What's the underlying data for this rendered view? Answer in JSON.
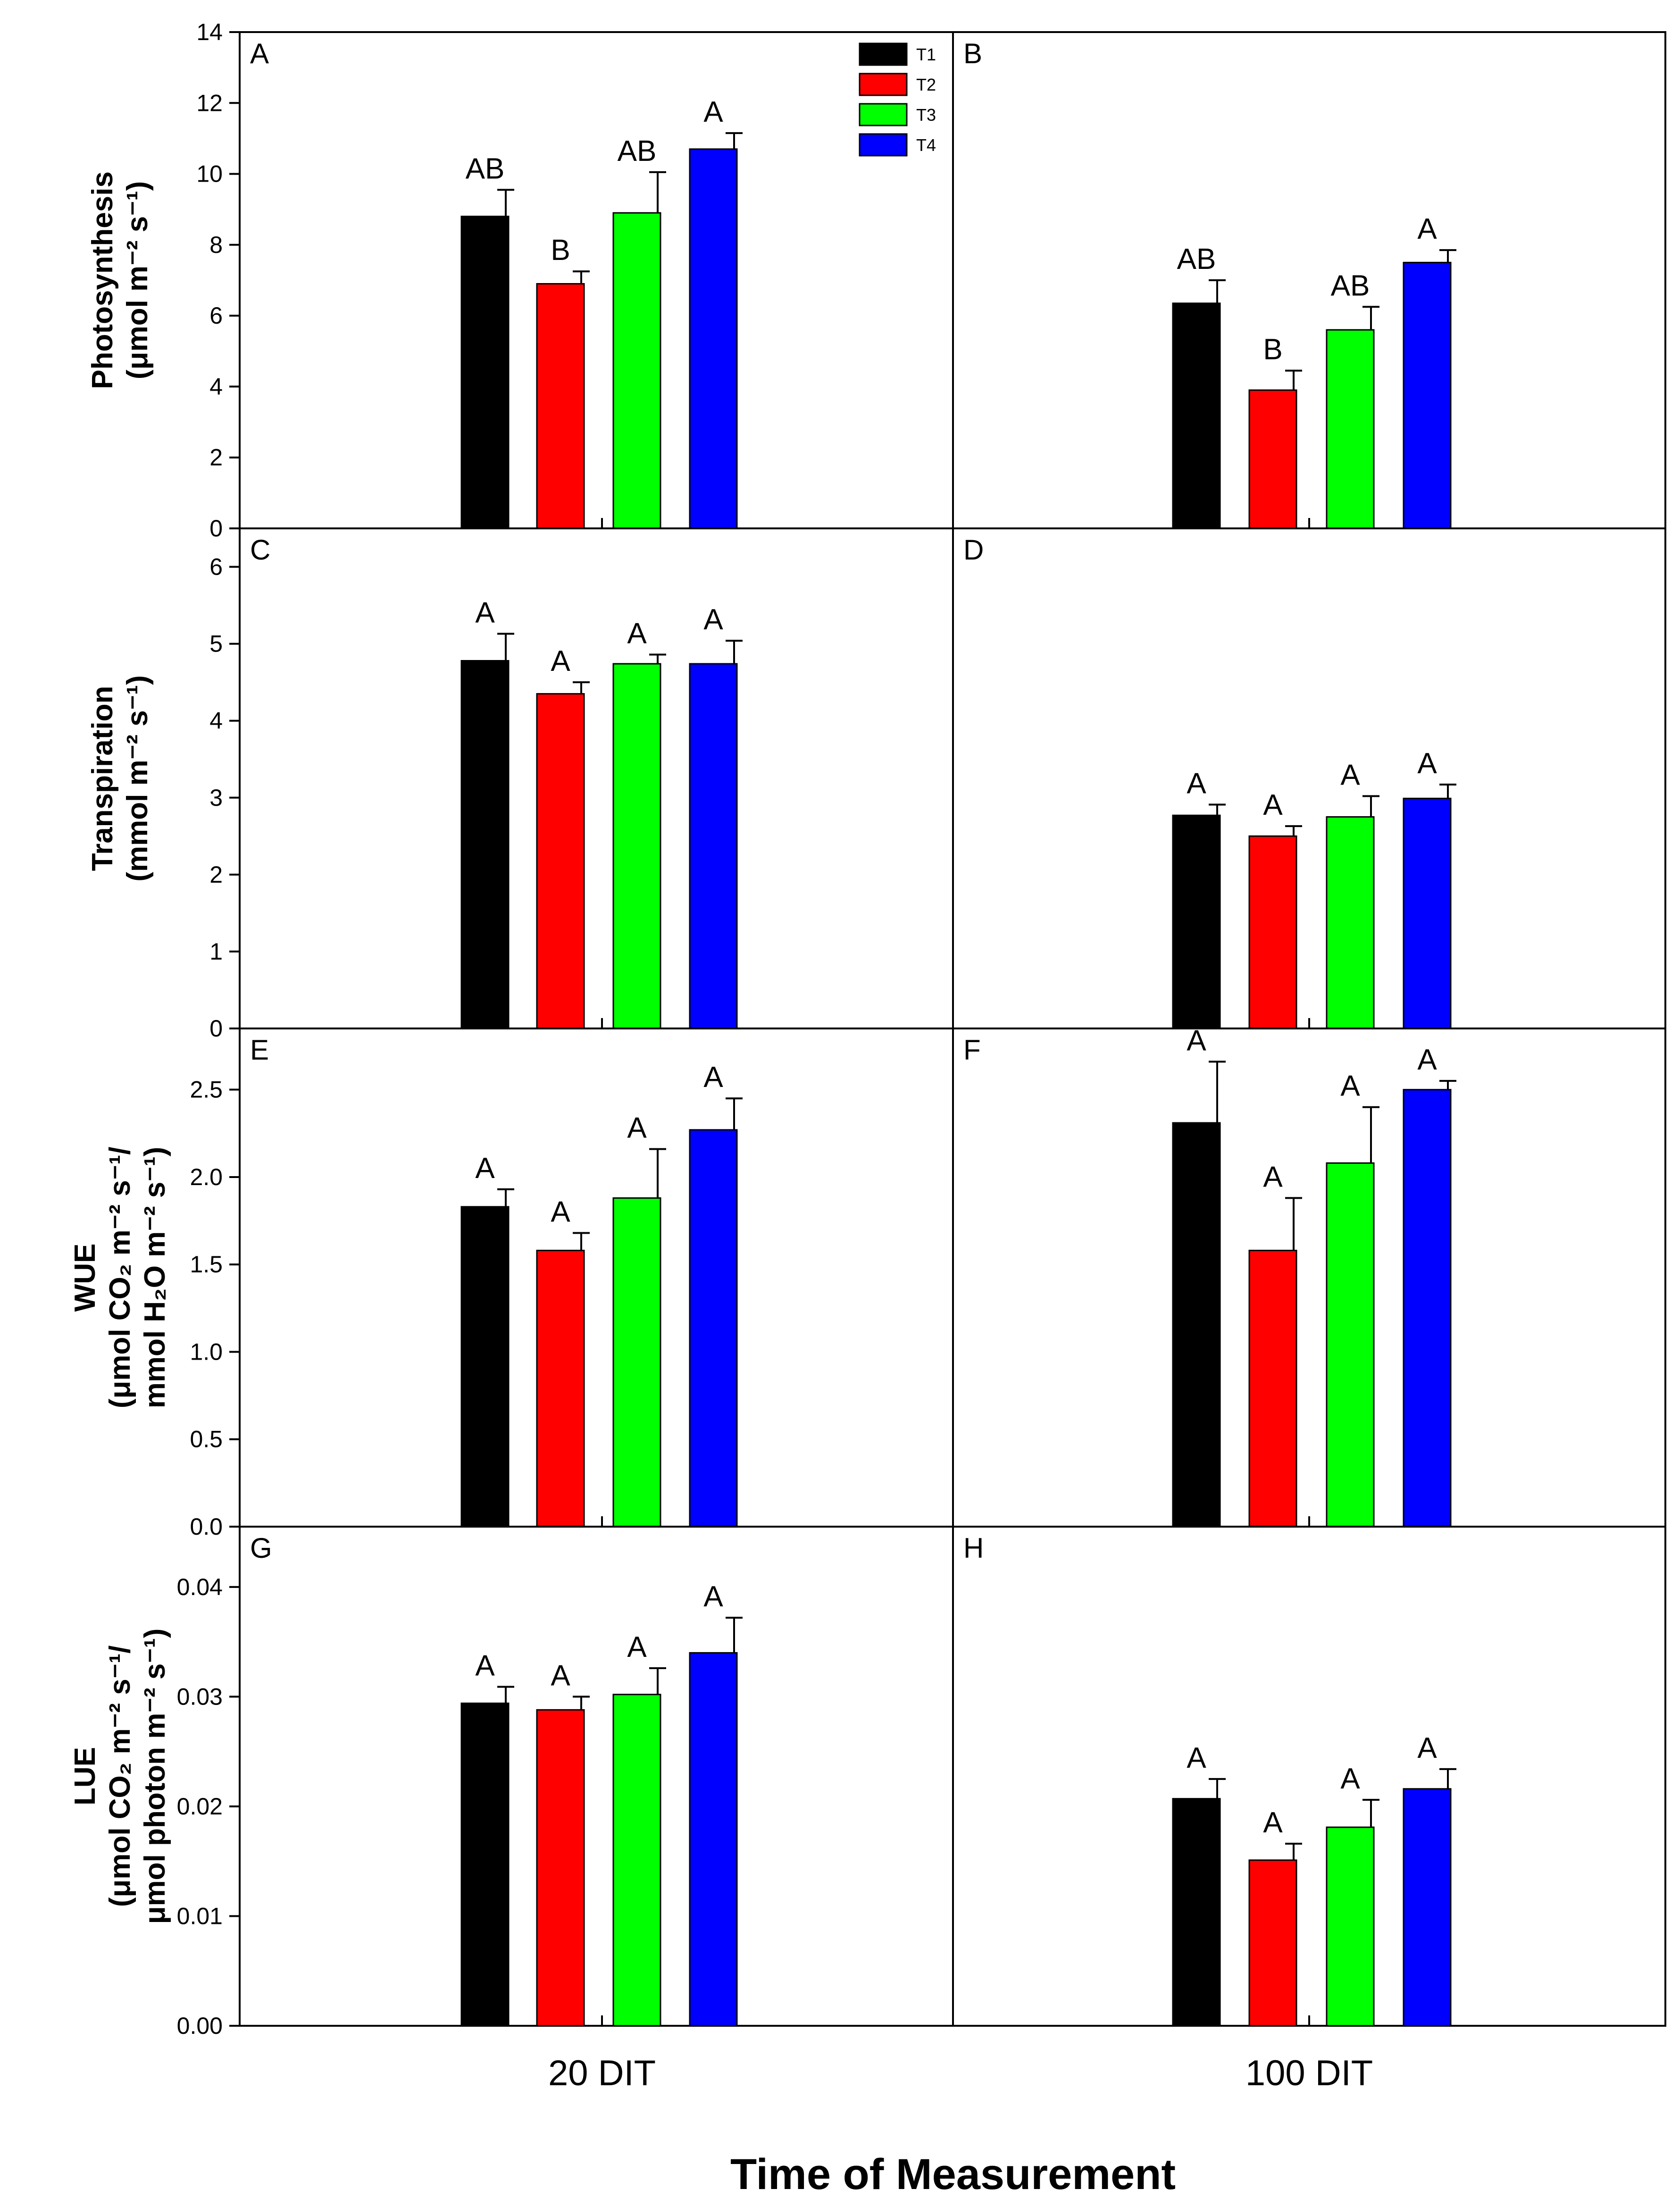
{
  "figure": {
    "xtitle": "Time of Measurement",
    "categories": [
      "20 DIT",
      "100 DIT"
    ]
  },
  "colors": {
    "T1": "#000000",
    "T2": "#ff0000",
    "T3": "#00ff00",
    "T4": "#0000ff"
  },
  "legend": [
    "T1",
    "T2",
    "T3",
    "T4"
  ],
  "chart_data": [
    {
      "type": "bar",
      "row": 0,
      "ylabel_lines": [
        "Photosynthesis",
        "(μmol m⁻² s⁻¹)"
      ],
      "yticks": [
        "0",
        "2",
        "4",
        "6",
        "8",
        "10",
        "12",
        "14"
      ],
      "ylim": [
        0,
        14
      ],
      "panels": [
        {
          "letter": "A",
          "category": "20 DIT",
          "values": [
            8.8,
            6.9,
            8.9,
            10.7
          ],
          "errors": [
            0.75,
            0.35,
            1.15,
            0.45
          ],
          "sig": [
            "AB",
            "B",
            "AB",
            "A"
          ]
        },
        {
          "letter": "B",
          "category": "100 DIT",
          "values": [
            6.35,
            3.9,
            5.6,
            7.5
          ],
          "errors": [
            0.65,
            0.55,
            0.65,
            0.35
          ],
          "sig": [
            "AB",
            "B",
            "AB",
            "A"
          ]
        }
      ]
    },
    {
      "type": "bar",
      "row": 1,
      "ylabel_lines": [
        "Transpiration",
        "(mmol m⁻² s⁻¹)"
      ],
      "yticks": [
        "0",
        "1",
        "2",
        "3",
        "4",
        "5",
        "6"
      ],
      "ylim": [
        0,
        6.5
      ],
      "panels": [
        {
          "letter": "C",
          "category": "20 DIT",
          "values": [
            4.78,
            4.35,
            4.74,
            4.74
          ],
          "errors": [
            0.35,
            0.15,
            0.12,
            0.3
          ],
          "sig": [
            "A",
            "A",
            "A",
            "A"
          ]
        },
        {
          "letter": "D",
          "category": "100 DIT",
          "values": [
            2.77,
            2.5,
            2.75,
            2.99
          ],
          "errors": [
            0.14,
            0.13,
            0.27,
            0.18
          ],
          "sig": [
            "A",
            "A",
            "A",
            "A"
          ]
        }
      ]
    },
    {
      "type": "bar",
      "row": 2,
      "ylabel_lines": [
        "WUE",
        "(μmol CO₂ m⁻² s⁻¹/",
        "mmol H₂O m⁻² s⁻¹)"
      ],
      "yticks": [
        "0.0",
        "0.5",
        "1.0",
        "1.5",
        "2.0",
        "2.5"
      ],
      "ylim": [
        0,
        2.85
      ],
      "panels": [
        {
          "letter": "E",
          "category": "20 DIT",
          "values": [
            1.83,
            1.58,
            1.88,
            2.27
          ],
          "errors": [
            0.1,
            0.1,
            0.28,
            0.18
          ],
          "sig": [
            "A",
            "A",
            "A",
            "A"
          ]
        },
        {
          "letter": "F",
          "category": "100 DIT",
          "values": [
            2.31,
            1.58,
            2.08,
            2.5
          ],
          "errors": [
            0.35,
            0.3,
            0.32,
            0.05
          ],
          "sig": [
            "A",
            "A",
            "A",
            "A"
          ]
        }
      ]
    },
    {
      "type": "bar",
      "row": 3,
      "ylabel_lines": [
        "LUE",
        "(μmol CO₂ m⁻² s⁻¹/",
        "μmol photon m⁻² s⁻¹)"
      ],
      "yticks": [
        "0.00",
        "0.01",
        "0.02",
        "0.03",
        "0.04"
      ],
      "ylim": [
        0,
        0.0455
      ],
      "panels": [
        {
          "letter": "G",
          "category": "20 DIT",
          "values": [
            0.0294,
            0.0288,
            0.0302,
            0.034
          ],
          "errors": [
            0.0015,
            0.0012,
            0.0024,
            0.0032
          ],
          "sig": [
            "A",
            "A",
            "A",
            "A"
          ]
        },
        {
          "letter": "H",
          "category": "100 DIT",
          "values": [
            0.0207,
            0.0151,
            0.0181,
            0.0216
          ],
          "errors": [
            0.0018,
            0.0015,
            0.0025,
            0.0018
          ],
          "sig": [
            "A",
            "A",
            "A",
            "A"
          ]
        }
      ]
    }
  ]
}
